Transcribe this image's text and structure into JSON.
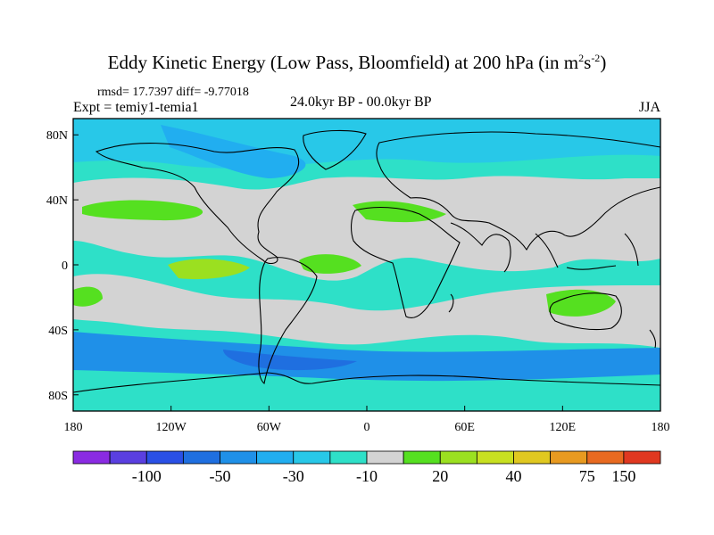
{
  "title_main": "Eddy Kinetic Energy (Low Pass, Bloomfield) at 200 hPa (in m",
  "title_sup1": "2",
  "title_s": "s",
  "title_sup2": "-2",
  "title_close": ")",
  "stats": "rmsd= 17.7397 diff= -9.77018",
  "experiment": "Expt = temiy1-temia1",
  "period": "24.0kyr BP - 00.0kyr BP",
  "season": "JJA",
  "lat_labels": [
    {
      "text": "80N",
      "lat": 80
    },
    {
      "text": "40N",
      "lat": 40
    },
    {
      "text": "0",
      "lat": 0
    },
    {
      "text": "40S",
      "lat": -40
    },
    {
      "text": "80S",
      "lat": -80
    }
  ],
  "lon_labels": [
    {
      "text": "180",
      "lon": -180
    },
    {
      "text": "120W",
      "lon": -120
    },
    {
      "text": "60W",
      "lon": -60
    },
    {
      "text": "0",
      "lon": 0
    },
    {
      "text": "60E",
      "lon": 60
    },
    {
      "text": "120E",
      "lon": 120
    },
    {
      "text": "180",
      "lon": 180
    }
  ],
  "colorbar": {
    "colors": [
      "#8a2be2",
      "#5a3fe0",
      "#2a50e6",
      "#1f6fe0",
      "#1f90e8",
      "#21aef0",
      "#28c8e8",
      "#2ee0c8",
      "#d3d3d3",
      "#55e020",
      "#9be020",
      "#c8e020",
      "#e0c820",
      "#e89a20",
      "#e86a20",
      "#e03820"
    ],
    "labels": [
      {
        "text": "-100",
        "boundary": 2
      },
      {
        "text": "-50",
        "boundary": 4
      },
      {
        "text": "-30",
        "boundary": 6
      },
      {
        "text": "-10",
        "boundary": 8
      },
      {
        "text": "20",
        "boundary": 10
      },
      {
        "text": "40",
        "boundary": 12
      },
      {
        "text": "75",
        "boundary": 14
      },
      {
        "text": "150",
        "boundary": 15
      }
    ]
  },
  "field_colors": {
    "gray": "#d3d3d3",
    "teal": "#2ee0c8",
    "cyan": "#28c8e8",
    "light_blue": "#21aef0",
    "blue": "#1f90e8",
    "dark_blue": "#1f6fe0",
    "green": "#55e020",
    "yellow_green": "#9be020"
  }
}
